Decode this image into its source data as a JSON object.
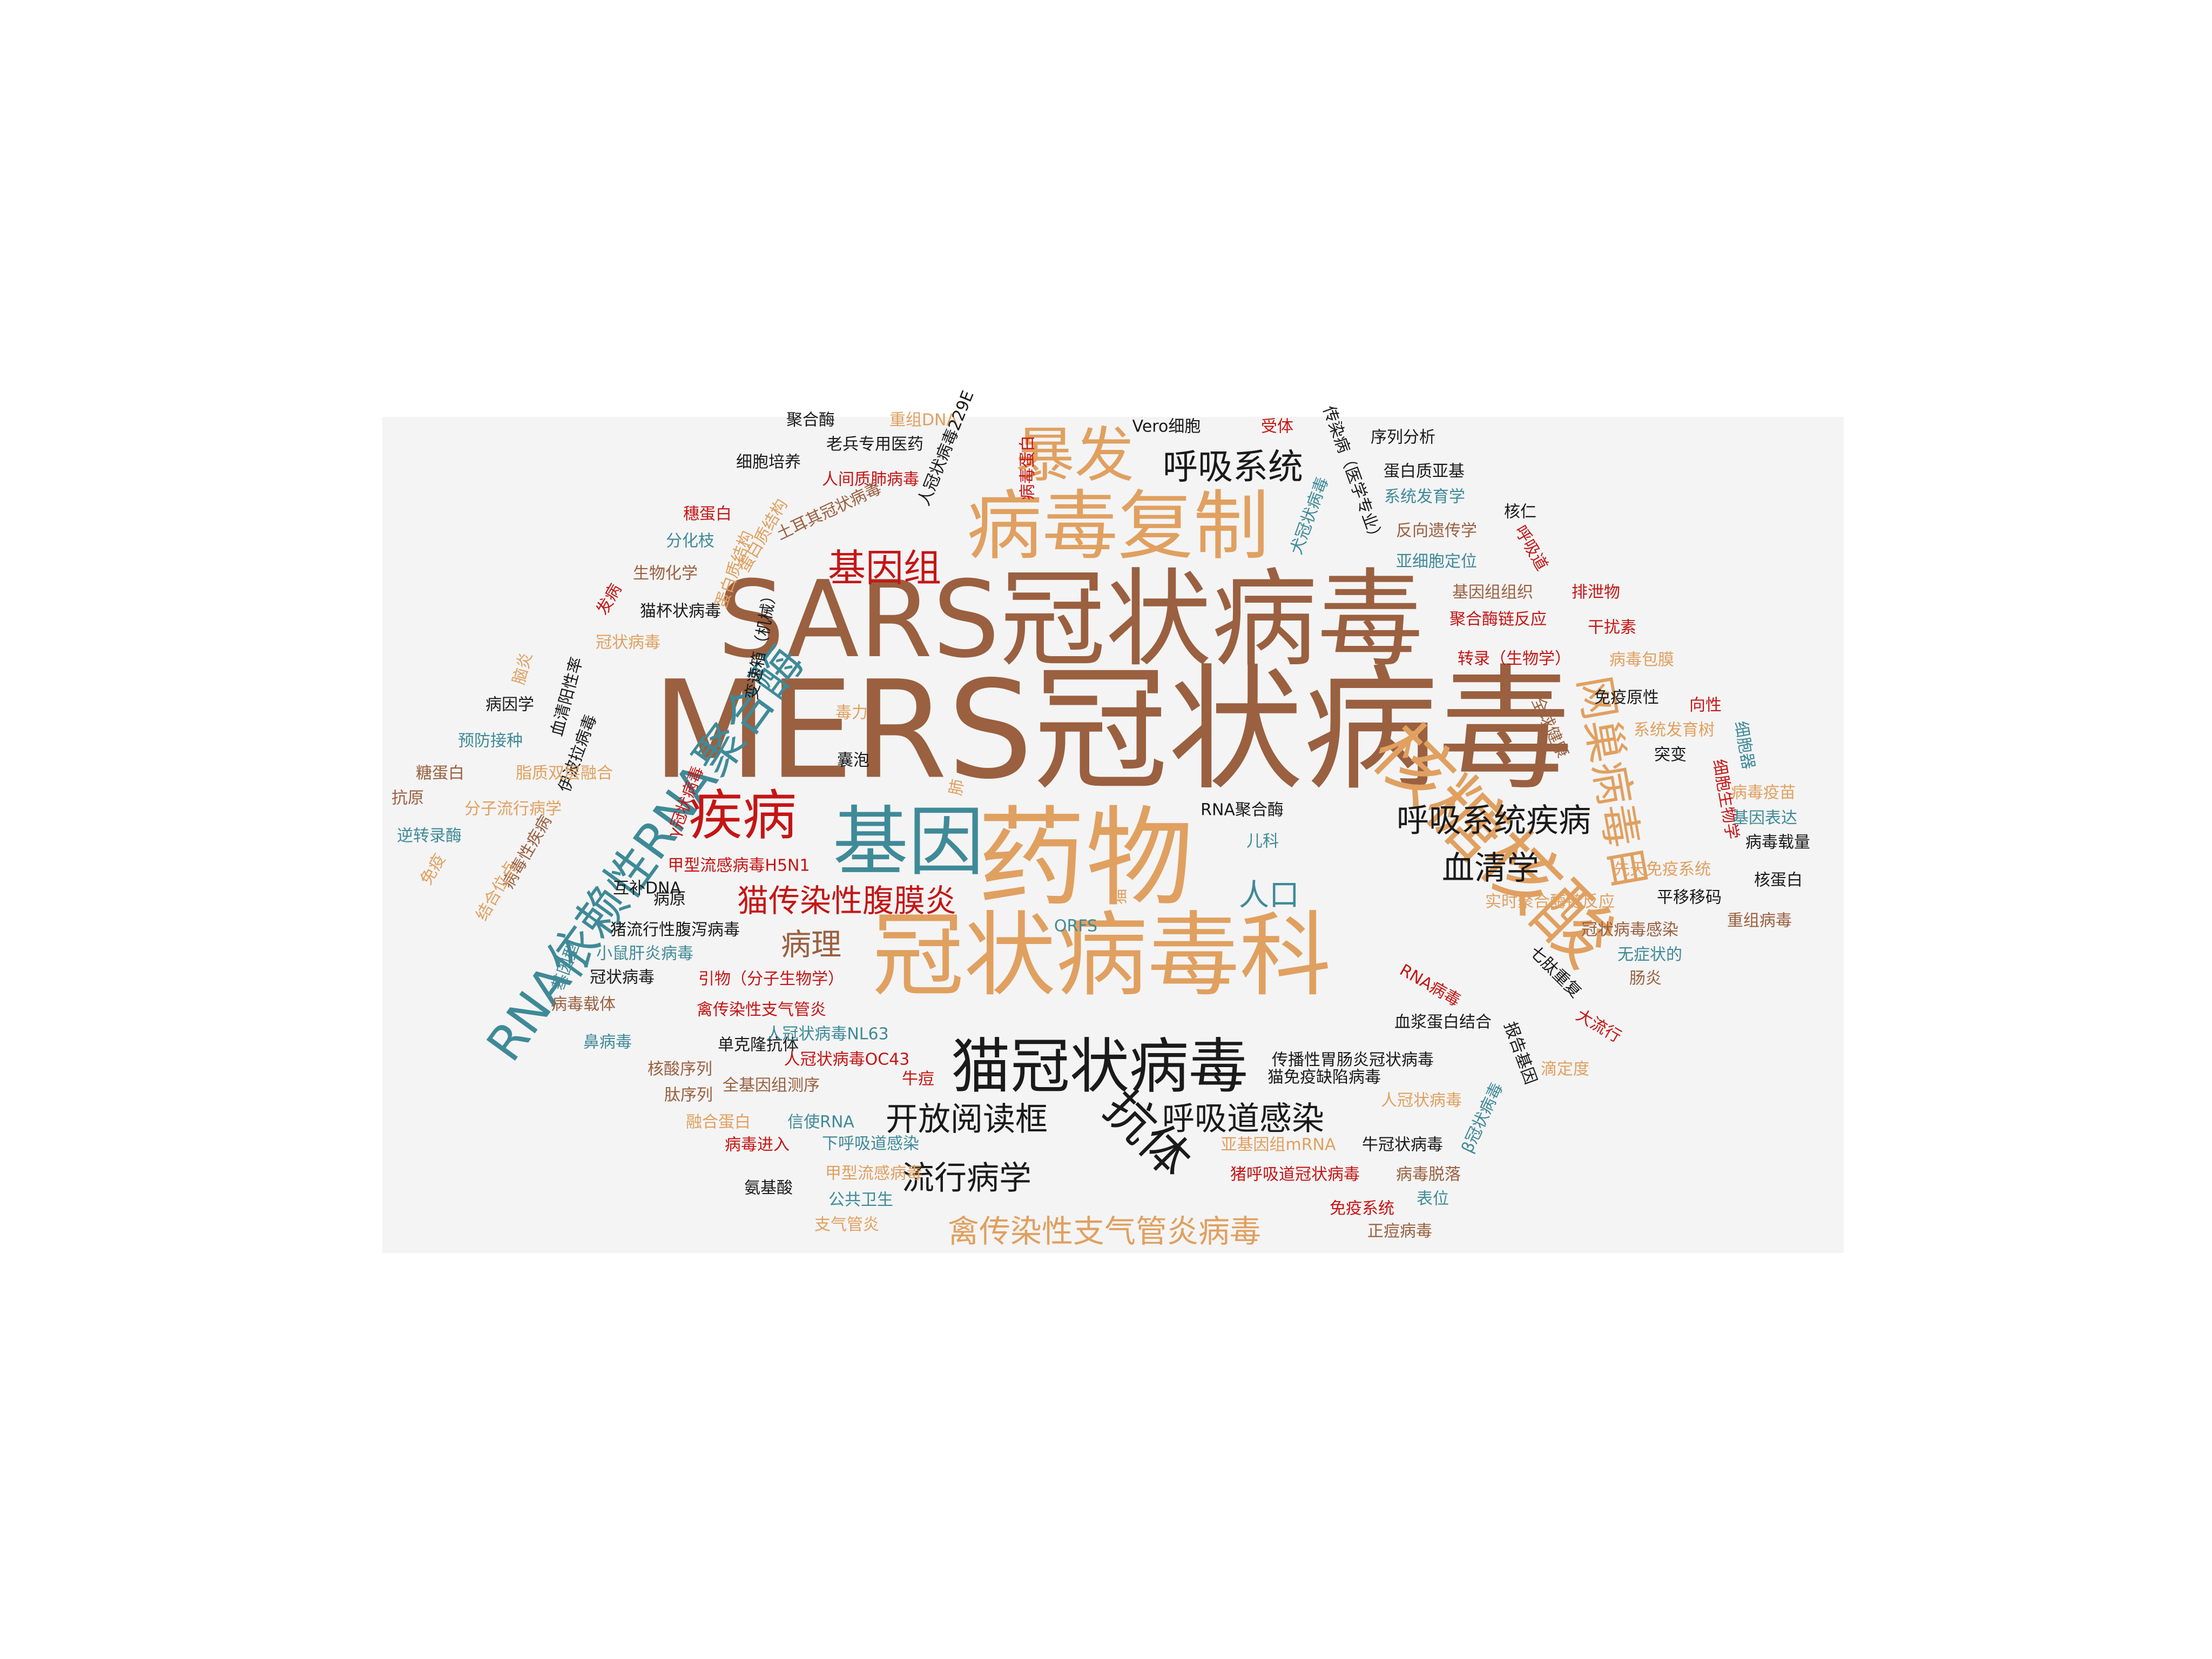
{
  "colors": {
    "black": "#1a1a1a",
    "tan": "#9a6040",
    "orange": "#e0a060",
    "teal": "#3f8a98",
    "red": "#c51515"
  },
  "words": [
    {
      "text": "MERS冠状病毒",
      "color": "tan"
    },
    {
      "text": "SARS冠状病毒",
      "color": "tan"
    },
    {
      "text": "药物",
      "color": "orange"
    },
    {
      "text": "冠状病毒科",
      "color": "orange"
    },
    {
      "text": "病毒复制",
      "color": "orange"
    },
    {
      "text": "核糖核酸",
      "color": "orange"
    },
    {
      "text": "基因",
      "color": "teal"
    },
    {
      "text": "猫冠状病毒",
      "color": "black"
    },
    {
      "text": "暴发",
      "color": "orange"
    },
    {
      "text": "RNA依赖性RNA聚合酶",
      "color": "teal"
    },
    {
      "text": "疾病",
      "color": "red"
    },
    {
      "text": "网巢病毒目",
      "color": "orange"
    },
    {
      "text": "抗体",
      "color": "black"
    },
    {
      "text": "基因组",
      "color": "red"
    },
    {
      "text": "呼吸系统",
      "color": "black"
    },
    {
      "text": "呼吸系统疾病",
      "color": "black"
    },
    {
      "text": "血清学",
      "color": "black"
    },
    {
      "text": "猫传染性腹膜炎",
      "color": "red"
    },
    {
      "text": "人口",
      "color": "teal"
    },
    {
      "text": "病理",
      "color": "tan"
    },
    {
      "text": "开放阅读框",
      "color": "black"
    },
    {
      "text": "呼吸道感染",
      "color": "black"
    },
    {
      "text": "流行病学",
      "color": "black"
    },
    {
      "text": "禽传染性支气管炎病毒",
      "color": "orange"
    },
    {
      "text": "聚合酶",
      "color": "black"
    },
    {
      "text": "重组DNA",
      "color": "orange"
    },
    {
      "text": "老兵专用医药",
      "color": "black"
    },
    {
      "text": "细胞培养",
      "color": "black"
    },
    {
      "text": "人间质肺病毒",
      "color": "red"
    },
    {
      "text": "病毒蛋白",
      "color": "red"
    },
    {
      "text": "人冠状病毒229E",
      "color": "black"
    },
    {
      "text": "Vero细胞",
      "color": "black"
    },
    {
      "text": "受体",
      "color": "red"
    },
    {
      "text": "传染病（医学专业）",
      "color": "black"
    },
    {
      "text": "序列分析",
      "color": "black"
    },
    {
      "text": "蛋白质亚基",
      "color": "black"
    },
    {
      "text": "系统发育学",
      "color": "teal"
    },
    {
      "text": "核仁",
      "color": "black"
    },
    {
      "text": "穗蛋白",
      "color": "red"
    },
    {
      "text": "蛋白质结构",
      "color": "orange"
    },
    {
      "text": "土耳其冠状病毒",
      "color": "tan"
    },
    {
      "text": "犬冠状病毒",
      "color": "teal"
    },
    {
      "text": "反向遗传学",
      "color": "tan"
    },
    {
      "text": "呼吸道",
      "color": "red"
    },
    {
      "text": "分化枝",
      "color": "teal"
    },
    {
      "text": "亚细胞定位",
      "color": "teal"
    },
    {
      "text": "生物化学",
      "color": "tan"
    },
    {
      "text": "蛋白质结构",
      "color": "orange"
    },
    {
      "text": "基因组组织",
      "color": "tan"
    },
    {
      "text": "排泄物",
      "color": "red"
    },
    {
      "text": "发病",
      "color": "red"
    },
    {
      "text": "猫杯状病毒",
      "color": "black"
    },
    {
      "text": "变速箱（机械）",
      "color": "black"
    },
    {
      "text": "聚合酶链反应",
      "color": "red"
    },
    {
      "text": "干扰素",
      "color": "red"
    },
    {
      "text": "冠状病毒",
      "color": "orange"
    },
    {
      "text": "转录（生物学）",
      "color": "red"
    },
    {
      "text": "病毒包膜",
      "color": "orange"
    },
    {
      "text": "脑炎",
      "color": "orange"
    },
    {
      "text": "血清阳性率",
      "color": "black"
    },
    {
      "text": "病因学",
      "color": "black"
    },
    {
      "text": "免疫原性",
      "color": "black"
    },
    {
      "text": "向性",
      "color": "red"
    },
    {
      "text": "毒力",
      "color": "orange"
    },
    {
      "text": "全球健康",
      "color": "tan"
    },
    {
      "text": "预防接种",
      "color": "teal"
    },
    {
      "text": "伊波拉病毒",
      "color": "black"
    },
    {
      "text": "系统发育树",
      "color": "orange"
    },
    {
      "text": "细胞器",
      "color": "teal"
    },
    {
      "text": "囊泡",
      "color": "black"
    },
    {
      "text": "突变",
      "color": "black"
    },
    {
      "text": "糖蛋白",
      "color": "tan"
    },
    {
      "text": "脂质双层融合",
      "color": "orange"
    },
    {
      "text": "肺",
      "color": "orange"
    },
    {
      "text": "细胞生物学",
      "color": "red"
    },
    {
      "text": "病毒疫苗",
      "color": "orange"
    },
    {
      "text": "抗原",
      "color": "tan"
    },
    {
      "text": "γ冠状病毒",
      "color": "red"
    },
    {
      "text": "RNA聚合酶",
      "color": "black"
    },
    {
      "text": "基因表达",
      "color": "teal"
    },
    {
      "text": "分子流行病学",
      "color": "orange"
    },
    {
      "text": "逆转录酶",
      "color": "teal"
    },
    {
      "text": "儿科",
      "color": "teal"
    },
    {
      "text": "病毒载量",
      "color": "black"
    },
    {
      "text": "病毒性疾病",
      "color": "tan"
    },
    {
      "text": "甲型流感病毒H5N1",
      "color": "red"
    },
    {
      "text": "免疫",
      "color": "orange"
    },
    {
      "text": "先天免疫系统",
      "color": "orange"
    },
    {
      "text": "核蛋白",
      "color": "black"
    },
    {
      "text": "互补DNA",
      "color": "black"
    },
    {
      "text": "平移移码",
      "color": "black"
    },
    {
      "text": "结合位点",
      "color": "orange"
    },
    {
      "text": "病原",
      "color": "black"
    },
    {
      "text": "猫",
      "color": "orange"
    },
    {
      "text": "实时聚合酶链反应",
      "color": "orange"
    },
    {
      "text": "ORFS",
      "color": "teal"
    },
    {
      "text": "重组病毒",
      "color": "tan"
    },
    {
      "text": "猪流行性腹泻病毒",
      "color": "black"
    },
    {
      "text": "冠状病毒感染",
      "color": "tan"
    },
    {
      "text": "基因型",
      "color": "teal"
    },
    {
      "text": "小鼠肝炎病毒",
      "color": "teal"
    },
    {
      "text": "无症状的",
      "color": "teal"
    },
    {
      "text": "冠状病毒",
      "color": "black"
    },
    {
      "text": "引物（分子生物学）",
      "color": "red"
    },
    {
      "text": "RNA病毒",
      "color": "red"
    },
    {
      "text": "七肽重复",
      "color": "black"
    },
    {
      "text": "肠炎",
      "color": "tan"
    },
    {
      "text": "病毒载体",
      "color": "tan"
    },
    {
      "text": "禽传染性支气管炎",
      "color": "red"
    },
    {
      "text": "血浆蛋白结合",
      "color": "black"
    },
    {
      "text": "大流行",
      "color": "red"
    },
    {
      "text": "鼻病毒",
      "color": "teal"
    },
    {
      "text": "单克隆抗体",
      "color": "black"
    },
    {
      "text": "人冠状病毒NL63",
      "color": "teal"
    },
    {
      "text": "传播性胃肠炎冠状病毒",
      "color": "black"
    },
    {
      "text": "报告基因",
      "color": "black"
    },
    {
      "text": "核酸序列",
      "color": "tan"
    },
    {
      "text": "人冠状病毒OC43",
      "color": "red"
    },
    {
      "text": "猫免疫缺陷病毒",
      "color": "black"
    },
    {
      "text": "滴定度",
      "color": "orange"
    },
    {
      "text": "肽序列",
      "color": "tan"
    },
    {
      "text": "全基因组测序",
      "color": "tan"
    },
    {
      "text": "牛痘",
      "color": "red"
    },
    {
      "text": "人冠状病毒",
      "color": "orange"
    },
    {
      "text": "β冠状病毒",
      "color": "teal"
    },
    {
      "text": "融合蛋白",
      "color": "orange"
    },
    {
      "text": "信使RNA",
      "color": "teal"
    },
    {
      "text": "亚基因组mRNA",
      "color": "orange"
    },
    {
      "text": "牛冠状病毒",
      "color": "black"
    },
    {
      "text": "病毒进入",
      "color": "red"
    },
    {
      "text": "下呼吸道感染",
      "color": "teal"
    },
    {
      "text": "甲型流感病毒",
      "color": "orange"
    },
    {
      "text": "猪呼吸道冠状病毒",
      "color": "red"
    },
    {
      "text": "病毒脱落",
      "color": "tan"
    },
    {
      "text": "氨基酸",
      "color": "black"
    },
    {
      "text": "公共卫生",
      "color": "teal"
    },
    {
      "text": "免疫系统",
      "color": "red"
    },
    {
      "text": "表位",
      "color": "teal"
    },
    {
      "text": "支气管炎",
      "color": "orange"
    },
    {
      "text": "正痘病毒",
      "color": "tan"
    }
  ]
}
